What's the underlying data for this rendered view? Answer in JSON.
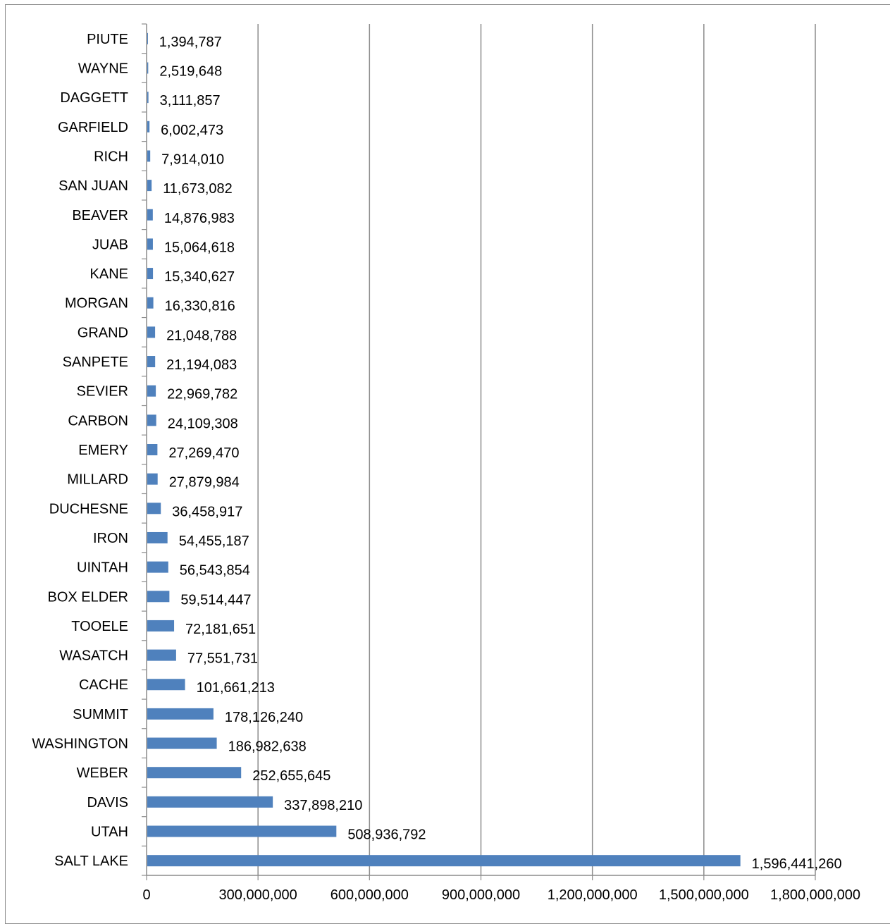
{
  "chart_data": {
    "type": "bar",
    "orientation": "horizontal",
    "categories": [
      "SALT LAKE",
      "UTAH",
      "DAVIS",
      "WEBER",
      "WASHINGTON",
      "SUMMIT",
      "CACHE",
      "WASATCH",
      "TOOELE",
      "BOX ELDER",
      "UINTAH",
      "IRON",
      "DUCHESNE",
      "MILLARD",
      "EMERY",
      "CARBON",
      "SEVIER",
      "SANPETE",
      "GRAND",
      "MORGAN",
      "KANE",
      "JUAB",
      "BEAVER",
      "SAN JUAN",
      "RICH",
      "GARFIELD",
      "DAGGETT",
      "WAYNE",
      "PIUTE"
    ],
    "values": [
      1596441260,
      508936792,
      337898210,
      252655645,
      186982638,
      178126240,
      101661213,
      77551731,
      72181651,
      59514447,
      56543854,
      54455187,
      36458917,
      27879984,
      27269470,
      24109308,
      22969782,
      21194083,
      21048788,
      16330816,
      15340627,
      15064618,
      14876983,
      11673082,
      7914010,
      6002473,
      3111857,
      2519648,
      1394787
    ],
    "value_labels": [
      "1,596,441,260",
      "508,936,792",
      "337,898,210",
      "252,655,645",
      "186,982,638",
      "178,126,240",
      "101,661,213",
      "77,551,731",
      "72,181,651",
      "59,514,447",
      "56,543,854",
      "54,455,187",
      "36,458,917",
      "27,879,984",
      "27,269,470",
      "24,109,308",
      "22,969,782",
      "21,194,083",
      "21,048,788",
      "16,330,816",
      "15,340,627",
      "15,064,618",
      "14,876,983",
      "11,673,082",
      "7,914,010",
      "6,002,473",
      "3,111,857",
      "2,519,648",
      "1,394,787"
    ],
    "xlim": [
      0,
      1800000000
    ],
    "x_ticks": [
      0,
      300000000,
      600000000,
      900000000,
      1200000000,
      1500000000,
      1800000000
    ],
    "x_tick_labels": [
      "0",
      "300,000,000",
      "600,000,000",
      "900,000,000",
      "1,200,000,000",
      "1,500,000,000",
      "1,800,000,000"
    ],
    "title": "",
    "xlabel": "",
    "ylabel": "",
    "grid": "vertical",
    "legend": "none",
    "colors": {
      "bar": "#4f81bd",
      "grid": "#8c8c8c",
      "axis": "#8c8c8c",
      "frame": "#8c8c8c"
    }
  }
}
